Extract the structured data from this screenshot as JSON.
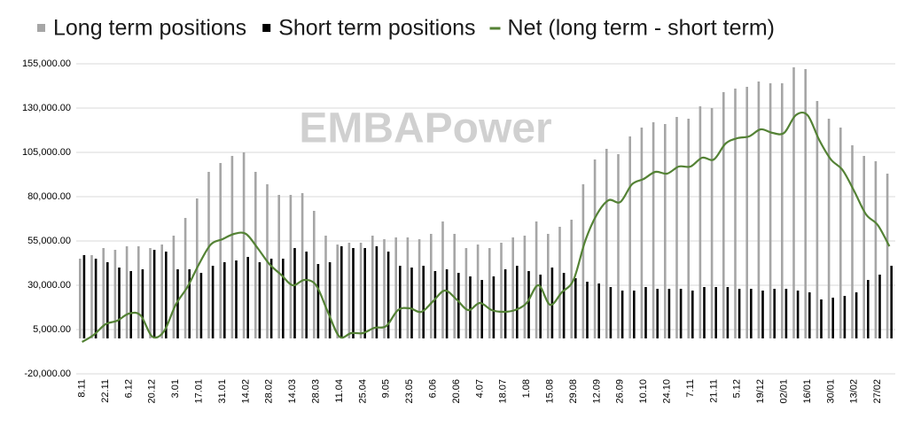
{
  "chart_data": {
    "type": "bar-line",
    "watermark": "EMBAPower",
    "categories": [
      "8.11",
      null,
      "22.11",
      null,
      "6.12",
      null,
      "20.12",
      null,
      "3.01",
      null,
      "17.01",
      null,
      "31.01",
      null,
      "14.02",
      null,
      "28.02",
      null,
      "14.03",
      null,
      "28.03",
      null,
      "11.04",
      null,
      "25.04",
      null,
      "9.05",
      null,
      "23.05",
      null,
      "6.06",
      null,
      "20.06",
      null,
      "4.07",
      null,
      "18.07",
      null,
      "1.08",
      null,
      "15.08",
      null,
      "29.08",
      null,
      "12.09",
      null,
      "26.09",
      null,
      "10.10",
      null,
      "24.10",
      null,
      "7.11",
      null,
      "21.11",
      null,
      "5.12",
      null,
      "19/12",
      null,
      "02/01",
      null,
      "16/01",
      null,
      "30/01",
      null,
      "13/02",
      null,
      "27/02",
      null
    ],
    "series": [
      {
        "name": "Long term positions",
        "type": "bar",
        "color": "#a6a6a6",
        "values": [
          45000,
          47000,
          51000,
          50000,
          52000,
          52000,
          51000,
          53000,
          58000,
          68000,
          79000,
          94000,
          99000,
          103000,
          105000,
          94000,
          87000,
          81000,
          81000,
          82000,
          72000,
          58000,
          53000,
          54000,
          54000,
          58000,
          56000,
          57000,
          57000,
          56000,
          59000,
          66000,
          59000,
          51000,
          53000,
          51000,
          54000,
          57000,
          58000,
          66000,
          59000,
          63000,
          67000,
          87000,
          101000,
          107000,
          104000,
          114000,
          119000,
          122000,
          121000,
          125000,
          124000,
          131000,
          130000,
          139000,
          141000,
          142000,
          145000,
          144000,
          144000,
          153000,
          152000,
          134000,
          124000,
          119000,
          109000,
          103000,
          100000,
          93000
        ]
      },
      {
        "name": "Short term positions",
        "type": "bar",
        "color": "#000000",
        "values": [
          47000,
          45000,
          43000,
          40000,
          38000,
          39000,
          50000,
          49000,
          39000,
          39000,
          37000,
          41000,
          43000,
          44000,
          46000,
          43000,
          45000,
          45000,
          51000,
          49000,
          42000,
          43000,
          52000,
          51000,
          51000,
          52000,
          49000,
          41000,
          40000,
          41000,
          38000,
          39000,
          37000,
          35000,
          33000,
          35000,
          39000,
          41000,
          38000,
          36000,
          40000,
          37000,
          34000,
          32000,
          31000,
          29000,
          27000,
          27000,
          29000,
          28000,
          28000,
          28000,
          27000,
          29000,
          29000,
          29000,
          28000,
          28000,
          27000,
          28000,
          28000,
          27000,
          26000,
          22000,
          23000,
          24000,
          26000,
          33000,
          36000,
          41000
        ]
      },
      {
        "name": "Net (long term - short term)",
        "type": "line",
        "color": "#548235",
        "values": [
          -2000,
          2000,
          8000,
          10000,
          14000,
          13000,
          1000,
          4000,
          19000,
          29000,
          42000,
          53000,
          56000,
          59000,
          59000,
          51000,
          42000,
          36000,
          30000,
          33000,
          30000,
          15000,
          1000,
          3000,
          3000,
          6000,
          7000,
          16000,
          17000,
          15000,
          21000,
          27000,
          22000,
          16000,
          20000,
          16000,
          15000,
          16000,
          20000,
          30000,
          19000,
          26000,
          33000,
          55000,
          70000,
          78000,
          77000,
          87000,
          90000,
          94000,
          93000,
          97000,
          97000,
          102000,
          101000,
          110000,
          113000,
          114000,
          118000,
          116000,
          116000,
          126000,
          126000,
          112000,
          101000,
          95000,
          83000,
          70000,
          64000,
          52000
        ]
      }
    ],
    "ylim": [
      -20000,
      155000
    ],
    "yticks": [
      {
        "value": -20000,
        "label": "-20,000.00"
      },
      {
        "value": 5000,
        "label": "5,000.00"
      },
      {
        "value": 30000,
        "label": "30,000.00"
      },
      {
        "value": 55000,
        "label": "55,000.00"
      },
      {
        "value": 80000,
        "label": "80,000.00"
      },
      {
        "value": 105000,
        "label": "105,000.00"
      },
      {
        "value": 130000,
        "label": "130,000.00"
      },
      {
        "value": 155000,
        "label": "155,000.00"
      }
    ],
    "grid": true,
    "legend": "top"
  }
}
